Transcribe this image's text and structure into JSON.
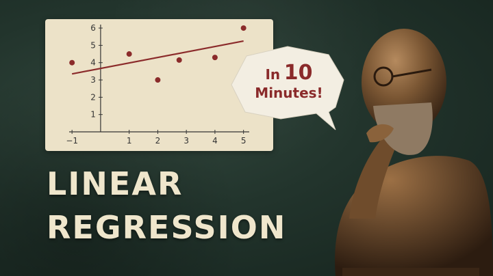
{
  "chart_data": {
    "type": "scatter",
    "x_ticks": [
      "−1",
      "1",
      "2",
      "3",
      "4",
      "5"
    ],
    "x_tick_values": [
      -1,
      1,
      2,
      3,
      4,
      5
    ],
    "y_ticks": [
      "1",
      "2",
      "3",
      "4",
      "5",
      "6"
    ],
    "y_tick_values": [
      1,
      2,
      3,
      4,
      5,
      6
    ],
    "xlim": [
      -1.1,
      5.2
    ],
    "ylim": [
      0,
      6.2
    ],
    "points": [
      {
        "x": -1,
        "y": 4.0
      },
      {
        "x": 1,
        "y": 4.5
      },
      {
        "x": 2,
        "y": 3.0
      },
      {
        "x": 2.75,
        "y": 4.15
      },
      {
        "x": 4,
        "y": 4.3
      },
      {
        "x": 5,
        "y": 6.0
      }
    ],
    "fit_line": {
      "x1": -1,
      "y1": 3.35,
      "x2": 5,
      "y2": 5.25
    },
    "grid": false
  },
  "bubble": {
    "prefix": "In",
    "number": "10",
    "suffix": "Minutes!"
  },
  "title": {
    "line1": "LINEAR",
    "line2": "REGRESSION"
  },
  "colors": {
    "point": "#8b2b2b",
    "line": "#8b2b2b",
    "axis": "#333333",
    "panel": "#ece2c8",
    "title": "#efe6cc"
  }
}
